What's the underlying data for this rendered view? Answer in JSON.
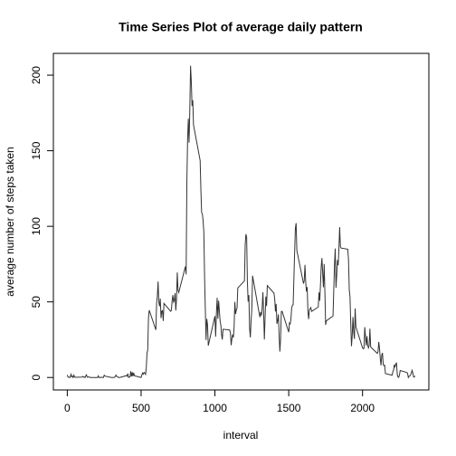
{
  "chart_data": {
    "type": "line",
    "title": "Time Series Plot of average daily pattern",
    "x_label": "interval",
    "y_label": "average number of steps taken",
    "x": [
      0,
      5,
      10,
      15,
      20,
      25,
      30,
      35,
      40,
      45,
      50,
      55,
      100,
      105,
      110,
      115,
      120,
      125,
      130,
      135,
      140,
      145,
      150,
      155,
      200,
      205,
      210,
      215,
      220,
      225,
      230,
      235,
      240,
      245,
      250,
      255,
      300,
      305,
      310,
      315,
      320,
      325,
      330,
      335,
      340,
      345,
      350,
      355,
      400,
      405,
      410,
      415,
      420,
      425,
      430,
      435,
      440,
      445,
      450,
      455,
      500,
      505,
      510,
      515,
      520,
      525,
      530,
      535,
      540,
      545,
      550,
      555,
      600,
      605,
      610,
      615,
      620,
      625,
      630,
      635,
      640,
      645,
      650,
      655,
      700,
      705,
      710,
      715,
      720,
      725,
      730,
      735,
      740,
      745,
      750,
      755,
      800,
      805,
      810,
      815,
      820,
      825,
      830,
      835,
      840,
      845,
      850,
      855,
      900,
      905,
      910,
      915,
      920,
      925,
      930,
      935,
      940,
      945,
      950,
      955,
      1000,
      1005,
      1010,
      1015,
      1020,
      1025,
      1030,
      1035,
      1040,
      1045,
      1050,
      1055,
      1100,
      1105,
      1110,
      1115,
      1120,
      1125,
      1130,
      1135,
      1140,
      1145,
      1150,
      1155,
      1200,
      1205,
      1210,
      1215,
      1220,
      1225,
      1230,
      1235,
      1240,
      1245,
      1250,
      1255,
      1300,
      1305,
      1310,
      1315,
      1320,
      1325,
      1330,
      1335,
      1340,
      1345,
      1350,
      1355,
      1400,
      1405,
      1410,
      1415,
      1420,
      1425,
      1430,
      1435,
      1440,
      1445,
      1450,
      1455,
      1500,
      1505,
      1510,
      1515,
      1520,
      1525,
      1530,
      1535,
      1540,
      1545,
      1550,
      1555,
      1600,
      1605,
      1610,
      1615,
      1620,
      1625,
      1630,
      1635,
      1640,
      1645,
      1650,
      1655,
      1700,
      1705,
      1710,
      1715,
      1720,
      1725,
      1730,
      1735,
      1740,
      1745,
      1750,
      1755,
      1800,
      1805,
      1810,
      1815,
      1820,
      1825,
      1830,
      1835,
      1840,
      1845,
      1850,
      1855,
      1900,
      1905,
      1910,
      1915,
      1920,
      1925,
      1930,
      1935,
      1940,
      1945,
      1950,
      1955,
      2000,
      2005,
      2010,
      2015,
      2020,
      2025,
      2030,
      2035,
      2040,
      2045,
      2050,
      2055,
      2100,
      2105,
      2110,
      2115,
      2120,
      2125,
      2130,
      2135,
      2140,
      2145,
      2150,
      2155,
      2200,
      2205,
      2210,
      2215,
      2220,
      2225,
      2230,
      2235,
      2240,
      2245,
      2250,
      2255,
      2300,
      2305,
      2310,
      2315,
      2320,
      2325,
      2330,
      2335,
      2340,
      2345,
      2350,
      2355
    ],
    "values": [
      1.7,
      0.3,
      0.1,
      0.2,
      0.1,
      2.1,
      0.5,
      0.9,
      0,
      1.5,
      0.3,
      0.1,
      0.3,
      0.7,
      0.2,
      0.3,
      0,
      1.1,
      1.8,
      0.2,
      0.2,
      0.4,
      0.3,
      0,
      0,
      0,
      1.1,
      0,
      0,
      0.1,
      0,
      0.2,
      0,
      0,
      1.5,
      0.9,
      0,
      0,
      0,
      0,
      0.2,
      0.6,
      1.6,
      0.6,
      0.5,
      0.1,
      0,
      0,
      1.2,
      0.9,
      2.6,
      0,
      0.3,
      0.4,
      4.1,
      0.7,
      3.5,
      0.8,
      3.1,
      1.1,
      0,
      1.6,
      3.0,
      2.2,
      3.3,
      3.0,
      2.1,
      6.1,
      16.0,
      18.3,
      39.5,
      44.5,
      31.5,
      49.3,
      53.8,
      63.5,
      50.0,
      47.1,
      52.2,
      39.3,
      44.0,
      44.2,
      37.4,
      49.0,
      43.8,
      44.4,
      50.5,
      54.5,
      49.9,
      51.0,
      55.7,
      44.3,
      52.3,
      69.5,
      57.8,
      56.2,
      73.4,
      68.2,
      129.4,
      157.5,
      171.2,
      155.4,
      177.3,
      206.2,
      195.9,
      179.6,
      183.4,
      167.0,
      143.5,
      124.0,
      109.1,
      108.1,
      103.7,
      96.0,
      66.2,
      45.2,
      24.8,
      38.8,
      35.0,
      21.1,
      40.6,
      27.0,
      42.4,
      52.7,
      38.9,
      50.8,
      44.3,
      37.4,
      34.7,
      28.3,
      25.1,
      31.9,
      31.4,
      29.7,
      21.3,
      25.5,
      28.4,
      26.5,
      33.4,
      50.0,
      42.0,
      44.6,
      46.0,
      59.2,
      63.9,
      87.7,
      94.8,
      92.8,
      63.4,
      50.2,
      54.5,
      32.4,
      26.5,
      37.7,
      45.1,
      67.3,
      42.3,
      39.9,
      43.3,
      41.0,
      46.2,
      56.4,
      42.8,
      25.1,
      40.0,
      53.5,
      47.3,
      60.8,
      55.8,
      52.0,
      43.6,
      48.7,
      35.5,
      37.5,
      41.8,
      27.5,
      17.1,
      26.1,
      43.6,
      43.8,
      30.0,
      36.1,
      35.5,
      38.8,
      46.0,
      47.8,
      48.1,
      65.3,
      82.9,
      98.7,
      102.1,
      84.0,
      62.1,
      64.1,
      74.5,
      63.2,
      56.9,
      59.8,
      43.9,
      38.6,
      44.7,
      45.5,
      46.2,
      43.7,
      46.6,
      56.3,
      50.7,
      61.2,
      73.4,
      79.0,
      68.9,
      59.7,
      75.1,
      56.5,
      34.8,
      37.5,
      40.7,
      58.0,
      74.7,
      85.3,
      59.3,
      67.8,
      77.7,
      74.2,
      85.3,
      99.5,
      86.6,
      85.6,
      84.9,
      77.8,
      58.0,
      53.4,
      36.3,
      20.7,
      27.4,
      40.0,
      30.2,
      25.5,
      45.7,
      33.5,
      19.6,
      19.0,
      19.3,
      33.3,
      26.8,
      21.2,
      27.3,
      21.3,
      19.6,
      21.3,
      32.3,
      20.2,
      15.9,
      17.2,
      23.5,
      19.2,
      12.5,
      8.0,
      14.7,
      16.3,
      8.7,
      7.8,
      8.1,
      2.6,
      1.5,
      3.7,
      4.8,
      8.5,
      7.1,
      8.7,
      9.8,
      2.2,
      0.3,
      0.1,
      1.6,
      4.6,
      3.3,
      2.8,
      0,
      0.8,
      1.0,
      1.6,
      2.6,
      4.7,
      3.3,
      0.6,
      0.2,
      1.1
    ],
    "color": "#333333",
    "xlim": [
      -94.2,
      2449.2
    ],
    "xticks": [
      0,
      500,
      1000,
      1500,
      2000
    ],
    "ylim": [
      -8.25,
      214.4
    ],
    "yticks": [
      0,
      50,
      100,
      150,
      200
    ]
  }
}
